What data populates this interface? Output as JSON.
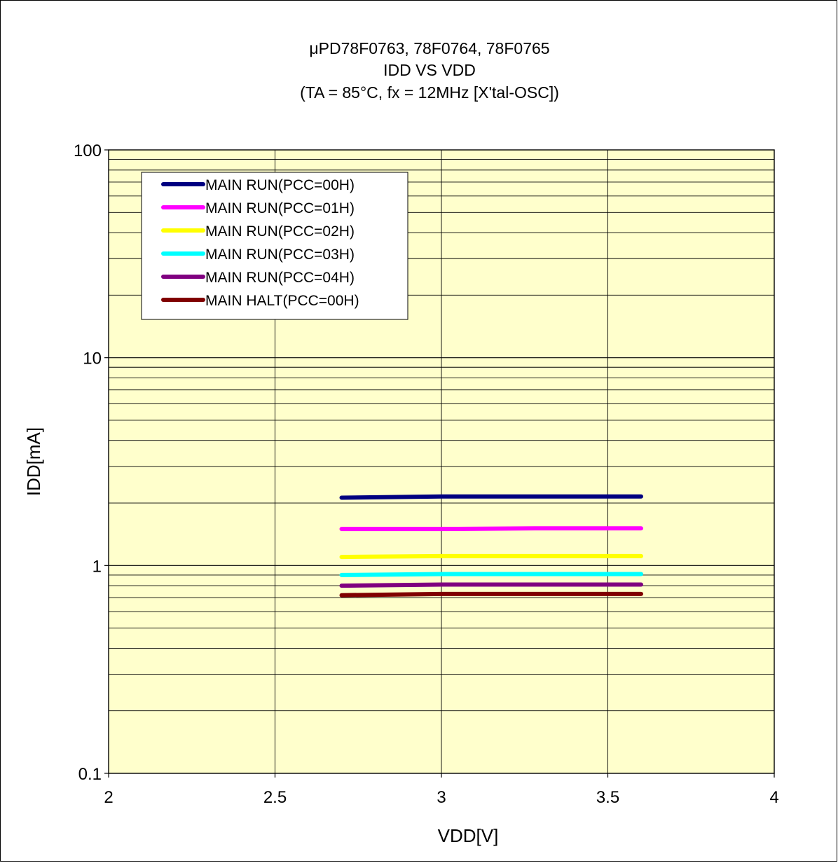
{
  "chart_data": {
    "type": "line",
    "title": [
      "μPD78F0763, 78F0764, 78F0765",
      "IDD VS VDD",
      "(TA = 85°C, fx = 12MHz [X'tal-OSC])"
    ],
    "xlabel": "VDD[V]",
    "ylabel": "IDD[mA]",
    "xlim": [
      2,
      4
    ],
    "ylim": [
      0.1,
      100
    ],
    "yscale": "log",
    "xticks": [
      2,
      2.5,
      3,
      3.5,
      4
    ],
    "xtick_labels": [
      "2",
      "2.5",
      "3",
      "3.5",
      "4"
    ],
    "yticks": [
      0.1,
      1,
      10,
      100
    ],
    "ytick_labels": [
      "0.1",
      "1",
      "10",
      "100"
    ],
    "grid": true,
    "legend_position": "top-left",
    "plot_background": "#ffffcc",
    "series": [
      {
        "name": "MAIN RUN(PCC=00H)",
        "color": "#000080",
        "x": [
          2.7,
          3.0,
          3.3,
          3.6
        ],
        "y": [
          2.12,
          2.15,
          2.15,
          2.15
        ]
      },
      {
        "name": "MAIN RUN(PCC=01H)",
        "color": "#ff00ff",
        "x": [
          2.7,
          3.0,
          3.3,
          3.6
        ],
        "y": [
          1.5,
          1.5,
          1.51,
          1.51
        ]
      },
      {
        "name": "MAIN RUN(PCC=02H)",
        "color": "#ffff00",
        "x": [
          2.7,
          3.0,
          3.3,
          3.6
        ],
        "y": [
          1.1,
          1.11,
          1.11,
          1.11
        ]
      },
      {
        "name": "MAIN RUN(PCC=03H)",
        "color": "#00ffff",
        "x": [
          2.7,
          3.0,
          3.3,
          3.6
        ],
        "y": [
          0.9,
          0.91,
          0.91,
          0.91
        ]
      },
      {
        "name": "MAIN RUN(PCC=04H)",
        "color": "#800080",
        "x": [
          2.7,
          3.0,
          3.3,
          3.6
        ],
        "y": [
          0.8,
          0.81,
          0.81,
          0.81
        ]
      },
      {
        "name": "MAIN HALT(PCC=00H)",
        "color": "#800000",
        "x": [
          2.7,
          3.0,
          3.3,
          3.6
        ],
        "y": [
          0.72,
          0.73,
          0.73,
          0.73
        ]
      }
    ]
  }
}
